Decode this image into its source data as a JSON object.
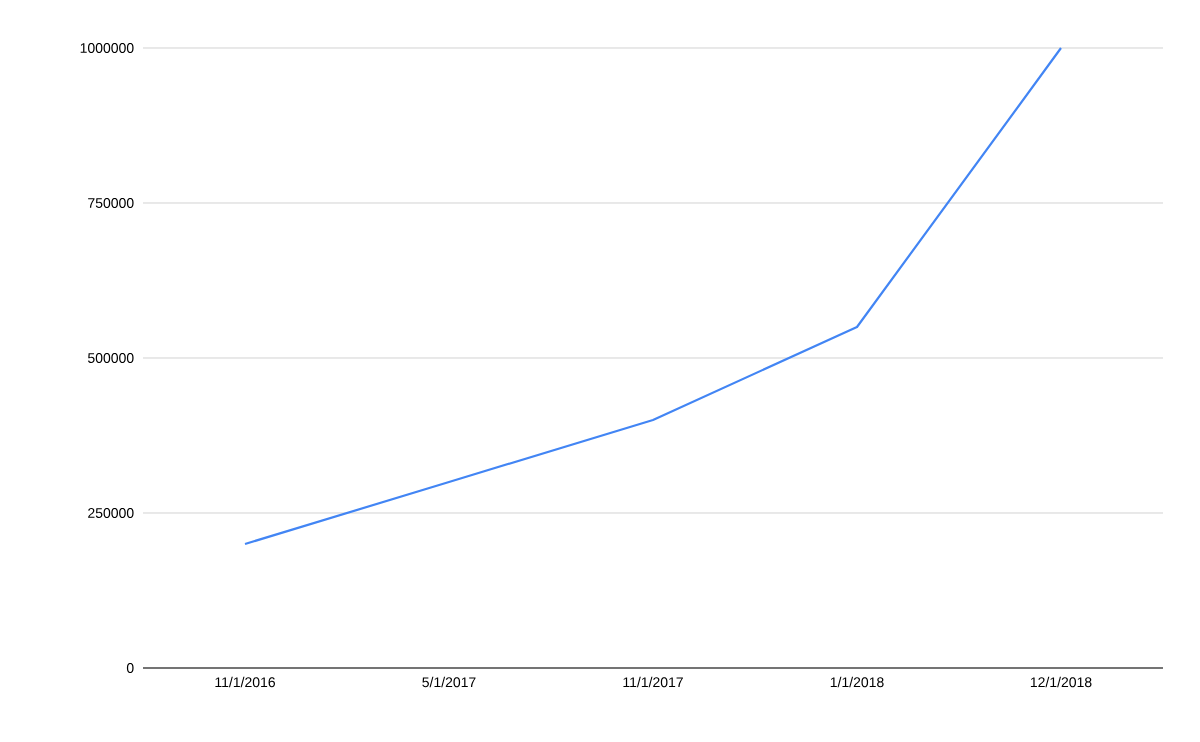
{
  "chart_data": {
    "type": "line",
    "categories": [
      "11/1/2016",
      "5/1/2017",
      "11/1/2017",
      "1/1/2018",
      "12/1/2018"
    ],
    "series": [
      {
        "color": "#4285f4",
        "values": [
          200000,
          300000,
          400000,
          550000,
          1000000
        ]
      }
    ],
    "ylim": [
      0,
      1000000
    ],
    "yticks": [
      0,
      250000,
      500000,
      750000,
      1000000
    ],
    "grid": "y",
    "marker": "none",
    "line_style": "solid"
  }
}
